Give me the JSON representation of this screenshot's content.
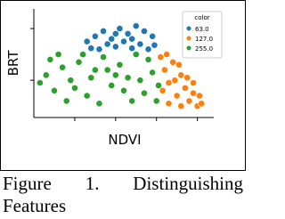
{
  "chart_data": {
    "type": "scatter",
    "x_label": "NDVI",
    "y_label": "BRT",
    "legend_title": "color",
    "legend_position": "upper right",
    "xlim": [
      0,
      4.4
    ],
    "ylim": [
      0.28,
      2.38
    ],
    "xticks": [
      1,
      2,
      3,
      4
    ],
    "yticks": [
      1,
      2
    ],
    "series": [
      {
        "name": "63.0",
        "color": "#1f77b4",
        "x": [
          1.3,
          1.5,
          1.7,
          1.9,
          2.1,
          2.3,
          2.5,
          2.7,
          2.9,
          1.6,
          1.8,
          2.0,
          2.2,
          2.4,
          2.6,
          2.8,
          2.0,
          2.4,
          1.4,
          2.95
        ],
        "values": [
          1.75,
          1.85,
          1.95,
          1.8,
          2.0,
          1.9,
          2.05,
          1.95,
          1.85,
          1.6,
          1.7,
          1.65,
          1.75,
          1.62,
          1.7,
          1.6,
          1.9,
          1.8,
          1.62,
          1.68
        ]
      },
      {
        "name": "127.0",
        "color": "#ff7f0e",
        "x": [
          3.1,
          3.2,
          3.3,
          3.4,
          3.5,
          3.6,
          3.7,
          3.8,
          3.9,
          4.0,
          4.1,
          3.15,
          3.3,
          3.45,
          3.6,
          3.75,
          3.9,
          4.05,
          3.25,
          3.55
        ],
        "values": [
          1.45,
          1.2,
          0.95,
          1.35,
          0.7,
          1.1,
          0.85,
          0.6,
          0.75,
          0.5,
          0.55,
          0.8,
          0.55,
          1.0,
          0.5,
          1.05,
          0.95,
          0.7,
          1.5,
          1.3
        ]
      },
      {
        "name": "255.0",
        "color": "#2ca02c",
        "x": [
          0.15,
          0.3,
          0.5,
          0.7,
          0.9,
          1.1,
          1.3,
          1.5,
          1.7,
          1.9,
          2.1,
          2.3,
          2.5,
          2.7,
          2.9,
          3.05,
          0.4,
          0.8,
          1.2,
          1.6,
          2.0,
          2.4,
          2.8,
          1.0,
          1.4,
          1.8,
          2.2,
          2.6,
          3.0,
          0.6
        ],
        "values": [
          0.95,
          1.1,
          0.8,
          1.25,
          1.0,
          1.35,
          0.7,
          1.2,
          1.45,
          0.9,
          1.3,
          1.05,
          1.5,
          0.75,
          1.15,
          0.9,
          1.4,
          0.6,
          1.5,
          0.55,
          1.1,
          0.6,
          1.4,
          0.85,
          1.05,
          1.2,
          0.8,
          1.0,
          0.6,
          1.5
        ]
      }
    ]
  },
  "caption": "Figure 1. Distinguishing Features"
}
